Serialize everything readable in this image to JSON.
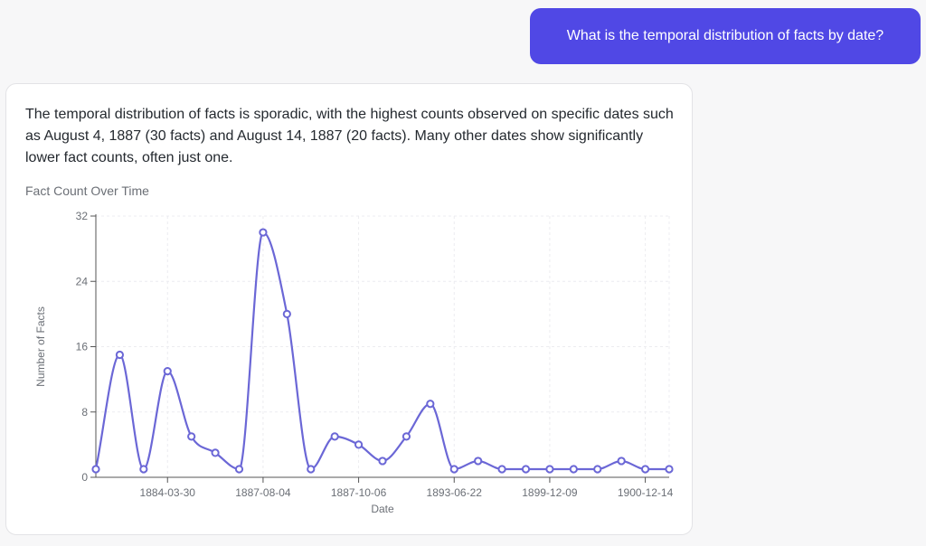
{
  "conversation": {
    "user_message": "What is the temporal distribution of facts by date?",
    "assistant_message": "The temporal distribution of facts is sporadic, with the highest counts observed on specific dates such as August 4, 1887 (30 facts) and August 14, 1887 (20 facts). Many other dates show significantly lower fact counts, often just one."
  },
  "colors": {
    "user_bubble": "#5048e5",
    "series_line": "#6b67d6",
    "grid": "#ececf0",
    "axis": "#555555"
  },
  "chart_data": {
    "type": "line",
    "title": "Fact Count Over Time",
    "xlabel": "Date",
    "ylabel": "Number of Facts",
    "ylim": [
      0,
      32
    ],
    "yticks": [
      0,
      8,
      16,
      24,
      32
    ],
    "grid": true,
    "x_tick_labels": [
      {
        "index": 3,
        "label": "1884-03-30"
      },
      {
        "index": 7,
        "label": "1887-08-04"
      },
      {
        "index": 11,
        "label": "1887-10-06"
      },
      {
        "index": 15,
        "label": "1893-06-22"
      },
      {
        "index": 19,
        "label": "1899-12-09"
      },
      {
        "index": 23,
        "label": "1900-12-14"
      }
    ],
    "series": [
      {
        "values": [
          1,
          15,
          1,
          13,
          5,
          3,
          1,
          30,
          20,
          1,
          5,
          4,
          2,
          5,
          9,
          1,
          2,
          1,
          1,
          1,
          1,
          1,
          2,
          1,
          1
        ]
      }
    ]
  }
}
